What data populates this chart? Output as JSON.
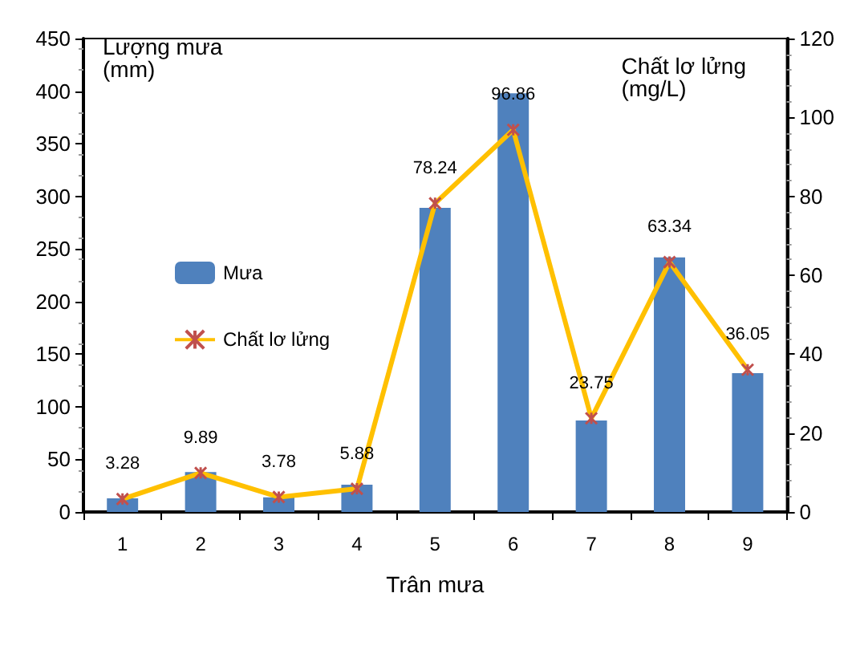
{
  "chart_data": {
    "type": "bar",
    "xlabel": "Trân mưa",
    "ylabel": "Lượng mưa\n(mm)",
    "y2label": "Chất lơ lửng\n(mg/L)",
    "categories": [
      "1",
      "2",
      "3",
      "4",
      "5",
      "6",
      "7",
      "8",
      "9"
    ],
    "series": [
      {
        "name": "Mưa",
        "color": "#4f81bd",
        "values": [
          13,
          38,
          14,
          26,
          289,
          398,
          87,
          242,
          132
        ]
      },
      {
        "name": "Chất lơ lửng",
        "type": "line",
        "axis": "y2",
        "color": "#ffc000",
        "marker": "cross",
        "values": [
          3.28,
          9.89,
          3.78,
          5.88,
          78.24,
          96.86,
          23.75,
          63.34,
          36.05
        ],
        "value_labels": [
          "3.28",
          "9.89",
          "3.78",
          "5.88",
          "78.24",
          "96.86",
          "23.75",
          "63.34",
          "36.05"
        ]
      }
    ],
    "ylim": [
      0,
      450
    ],
    "yticks": [
      0,
      50,
      100,
      150,
      200,
      250,
      300,
      350,
      400,
      450
    ],
    "y2lim": [
      0,
      120
    ],
    "y2ticks": [
      0,
      20,
      40,
      60,
      80,
      100,
      120
    ],
    "grid": false,
    "legend": "left"
  }
}
